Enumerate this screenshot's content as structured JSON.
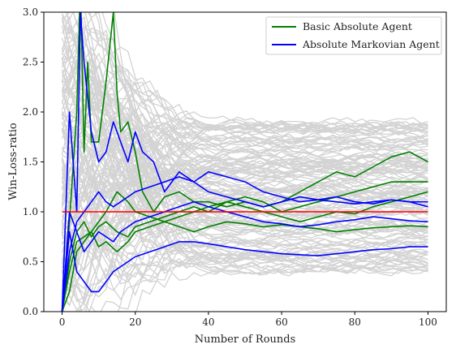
{
  "chart_data": {
    "type": "line",
    "title": "",
    "xlabel": "Number of Rounds",
    "ylabel": "Win-Loss-ratio",
    "xlim": [
      -5,
      105
    ],
    "ylim": [
      0.0,
      3.0
    ],
    "x_ticks": [
      0,
      20,
      40,
      60,
      80,
      100
    ],
    "y_ticks": [
      0.0,
      0.5,
      1.0,
      1.5,
      2.0,
      2.5,
      3.0
    ],
    "x_tick_labels": [
      "0",
      "20",
      "40",
      "60",
      "80",
      "100"
    ],
    "y_tick_labels": [
      "0.0",
      "0.5",
      "1.0",
      "1.5",
      "2.0",
      "2.5",
      "3.0"
    ],
    "grid": false,
    "legend": {
      "placement": "top-right"
    },
    "background_runs": {
      "color": "#d3d3d3",
      "count": 140,
      "x_max": 100
    },
    "reference_line": {
      "y": 1.0,
      "x_range": [
        0,
        100
      ],
      "color": "#ff0000"
    },
    "series": [
      {
        "name": "Basic Absolute Agent",
        "color": "#008000",
        "in_legend": true,
        "x": [
          0,
          2,
          4,
          5,
          6,
          7,
          8,
          10,
          12,
          14,
          15,
          16,
          18,
          20,
          22,
          25,
          28,
          32,
          36,
          40,
          45,
          50,
          55,
          60,
          65,
          70,
          75,
          80,
          85,
          90,
          95,
          100
        ],
        "values": [
          0,
          0.9,
          2.0,
          3.3,
          1.6,
          2.5,
          1.7,
          1.7,
          2.3,
          3.0,
          2.2,
          1.8,
          1.9,
          1.6,
          1.2,
          1.0,
          1.15,
          1.2,
          1.1,
          1.1,
          1.05,
          1.1,
          1.05,
          1.1,
          1.2,
          1.3,
          1.4,
          1.35,
          1.45,
          1.55,
          1.6,
          1.5
        ]
      },
      {
        "name": "",
        "color": "#008000",
        "in_legend": false,
        "x": [
          0,
          2,
          4,
          6,
          8,
          10,
          12,
          15,
          18,
          20,
          24,
          28,
          32,
          36,
          40,
          45,
          50,
          55,
          60,
          65,
          70,
          75,
          80,
          85,
          90,
          95,
          100
        ],
        "values": [
          0,
          0.5,
          0.8,
          0.9,
          0.75,
          0.85,
          0.9,
          0.8,
          0.75,
          0.85,
          0.9,
          0.95,
          1.0,
          1.05,
          1.0,
          1.1,
          1.15,
          1.1,
          1.0,
          1.05,
          1.1,
          1.15,
          1.2,
          1.25,
          1.3,
          1.3,
          1.3
        ]
      },
      {
        "name": "",
        "color": "#008000",
        "in_legend": false,
        "x": [
          0,
          2,
          4,
          6,
          8,
          10,
          12,
          15,
          18,
          20,
          24,
          28,
          32,
          36,
          40,
          45,
          50,
          55,
          60,
          65,
          70,
          75,
          80,
          85,
          90,
          95,
          100
        ],
        "values": [
          0,
          0.2,
          0.6,
          0.7,
          0.8,
          0.65,
          0.7,
          0.6,
          0.7,
          0.8,
          0.85,
          0.9,
          0.95,
          1.0,
          1.05,
          1.1,
          1.05,
          1.0,
          0.95,
          0.9,
          0.95,
          1.0,
          0.98,
          1.05,
          1.1,
          1.15,
          1.2
        ]
      },
      {
        "name": "",
        "color": "#008000",
        "in_legend": false,
        "x": [
          0,
          2,
          4,
          6,
          8,
          10,
          12,
          15,
          18,
          20,
          24,
          28,
          32,
          36,
          40,
          45,
          50,
          55,
          60,
          65,
          70,
          75,
          80,
          85,
          90,
          95,
          100
        ],
        "values": [
          0,
          0.4,
          0.7,
          0.75,
          0.8,
          0.9,
          1.0,
          1.2,
          1.1,
          1.0,
          0.95,
          0.9,
          0.85,
          0.8,
          0.85,
          0.9,
          0.88,
          0.85,
          0.87,
          0.85,
          0.83,
          0.8,
          0.82,
          0.84,
          0.85,
          0.86,
          0.85
        ]
      },
      {
        "name": "Absolute Markovian Agent",
        "color": "#0000ff",
        "in_legend": true,
        "x": [
          0,
          2,
          4,
          5,
          6,
          8,
          10,
          12,
          14,
          16,
          18,
          20,
          22,
          25,
          28,
          30,
          32,
          36,
          40,
          45,
          50,
          55,
          60,
          65,
          70,
          75,
          80,
          85,
          90,
          95,
          100
        ],
        "values": [
          0,
          2.0,
          1.0,
          3.0,
          2.5,
          1.8,
          1.5,
          1.6,
          1.9,
          1.7,
          1.5,
          1.8,
          1.6,
          1.5,
          1.2,
          1.3,
          1.4,
          1.3,
          1.2,
          1.15,
          1.1,
          1.05,
          1.1,
          1.15,
          1.12,
          1.1,
          1.08,
          1.1,
          1.12,
          1.1,
          1.05
        ]
      },
      {
        "name": "",
        "color": "#0000ff",
        "in_legend": false,
        "x": [
          0,
          2,
          4,
          6,
          8,
          10,
          12,
          14,
          16,
          18,
          20,
          24,
          28,
          32,
          36,
          40,
          45,
          50,
          55,
          60,
          65,
          70,
          75,
          80,
          85,
          90,
          95,
          100
        ],
        "values": [
          0,
          0.8,
          0.4,
          0.3,
          0.2,
          0.2,
          0.3,
          0.4,
          0.45,
          0.5,
          0.55,
          0.6,
          0.65,
          0.7,
          0.7,
          0.68,
          0.65,
          0.62,
          0.6,
          0.58,
          0.57,
          0.56,
          0.58,
          0.6,
          0.62,
          0.63,
          0.65,
          0.65
        ]
      },
      {
        "name": "",
        "color": "#0000ff",
        "in_legend": false,
        "x": [
          0,
          2,
          4,
          6,
          8,
          10,
          12,
          14,
          16,
          18,
          20,
          24,
          28,
          32,
          36,
          40,
          45,
          50,
          55,
          60,
          65,
          70,
          75,
          80,
          85,
          90,
          95,
          100
        ],
        "values": [
          0,
          1.0,
          0.8,
          0.6,
          0.7,
          0.8,
          0.75,
          0.7,
          0.8,
          0.85,
          0.9,
          0.95,
          1.0,
          1.05,
          1.1,
          1.05,
          1.0,
          0.95,
          0.9,
          0.88,
          0.85,
          0.87,
          0.9,
          0.92,
          0.95,
          0.93,
          0.91,
          0.9
        ]
      },
      {
        "name": "",
        "color": "#0000ff",
        "in_legend": false,
        "x": [
          0,
          2,
          4,
          6,
          8,
          10,
          12,
          14,
          16,
          18,
          20,
          24,
          28,
          32,
          36,
          40,
          45,
          50,
          55,
          60,
          65,
          70,
          75,
          80,
          85,
          90,
          95,
          100
        ],
        "values": [
          0,
          0.6,
          0.9,
          1.0,
          1.1,
          1.2,
          1.1,
          1.05,
          1.1,
          1.15,
          1.2,
          1.25,
          1.3,
          1.35,
          1.3,
          1.4,
          1.35,
          1.3,
          1.2,
          1.15,
          1.1,
          1.12,
          1.15,
          1.1,
          1.08,
          1.12,
          1.1,
          1.1
        ]
      }
    ]
  }
}
